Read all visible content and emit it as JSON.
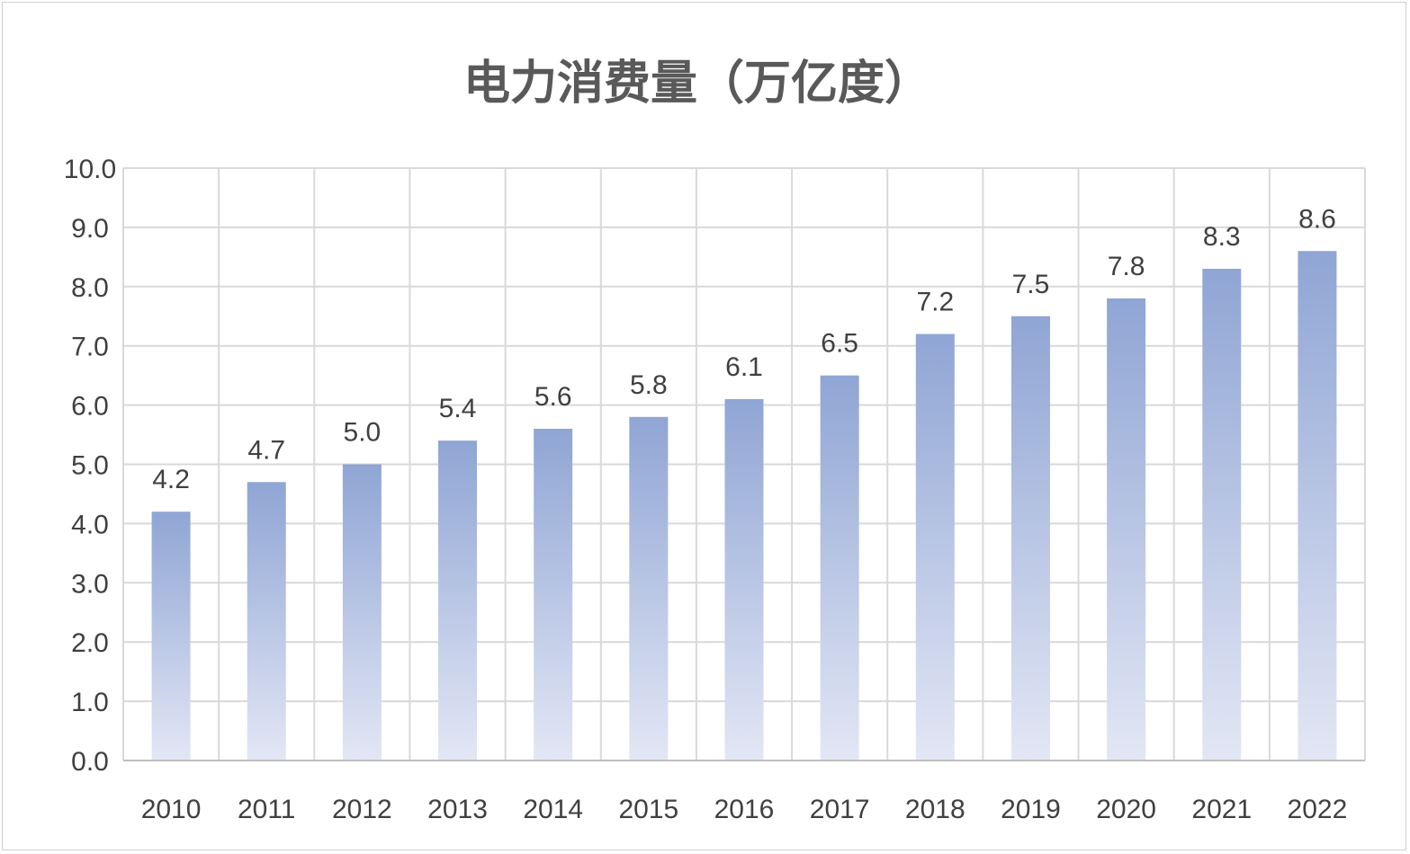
{
  "chart_data": {
    "type": "bar",
    "title": "电力消费量（万亿度）",
    "xlabel": "",
    "ylabel": "",
    "categories": [
      "2010",
      "2011",
      "2012",
      "2013",
      "2014",
      "2015",
      "2016",
      "2017",
      "2018",
      "2019",
      "2020",
      "2021",
      "2022"
    ],
    "values": [
      4.2,
      4.7,
      5.0,
      5.4,
      5.6,
      5.8,
      6.1,
      6.5,
      7.2,
      7.5,
      7.8,
      8.3,
      8.6
    ],
    "data_labels": [
      "4.2",
      "4.7",
      "5.0",
      "5.4",
      "5.6",
      "5.8",
      "6.1",
      "6.5",
      "7.2",
      "7.5",
      "7.8",
      "8.3",
      "8.6"
    ],
    "ylim": [
      0,
      10
    ],
    "yticks": [
      "0.0",
      "1.0",
      "2.0",
      "3.0",
      "4.0",
      "5.0",
      "6.0",
      "7.0",
      "8.0",
      "9.0",
      "10.0"
    ],
    "grid": true,
    "legend": "none",
    "colors": {
      "bar_top": "#8fa5d4",
      "bar_bottom": "#e3e7f5",
      "grid": "#d9d9d9"
    }
  }
}
